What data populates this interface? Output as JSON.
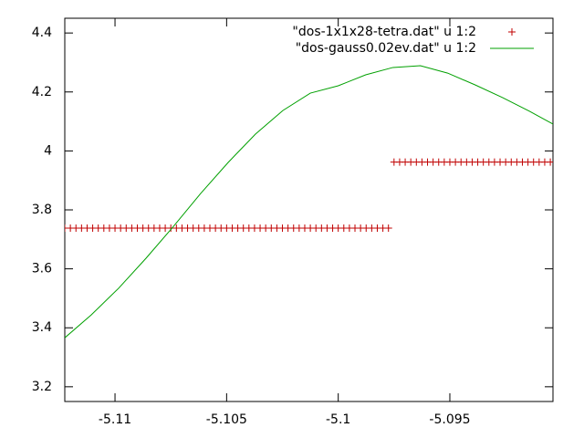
{
  "chart_data": {
    "type": "scatter-line",
    "xlim": [
      -5.11225,
      -5.09038
    ],
    "ylim": [
      3.15,
      4.45
    ],
    "xticks": [
      -5.11,
      -5.105,
      -5.1,
      -5.095
    ],
    "yticks": [
      3.2,
      3.4,
      3.6,
      3.8,
      4,
      4.2,
      4.4
    ],
    "legend": "top-right",
    "series": [
      {
        "name": "\"dos-1x1x28-tetra.dat\" u 1:2",
        "color": "#c00000",
        "style": "points",
        "x": [
          -5.11225,
          -5.112,
          -5.11175,
          -5.1115,
          -5.11125,
          -5.111,
          -5.11075,
          -5.1105,
          -5.11025,
          -5.11,
          -5.10975,
          -5.1095,
          -5.10925,
          -5.109,
          -5.10875,
          -5.1085,
          -5.10825,
          -5.108,
          -5.10775,
          -5.1075,
          -5.10725,
          -5.107,
          -5.10675,
          -5.1065,
          -5.10625,
          -5.106,
          -5.10575,
          -5.1055,
          -5.10525,
          -5.105,
          -5.10475,
          -5.1045,
          -5.10425,
          -5.104,
          -5.10375,
          -5.1035,
          -5.10325,
          -5.103,
          -5.10275,
          -5.1025,
          -5.10225,
          -5.102,
          -5.10175,
          -5.1015,
          -5.10125,
          -5.101,
          -5.10075,
          -5.1005,
          -5.10025,
          -5.1,
          -5.09975,
          -5.0995,
          -5.09925,
          -5.099,
          -5.09875,
          -5.0985,
          -5.09825,
          -5.098,
          -5.09775,
          -5.0975,
          -5.09725,
          -5.097,
          -5.09675,
          -5.0965,
          -5.09625,
          -5.096,
          -5.09575,
          -5.0955,
          -5.09525,
          -5.095,
          -5.09475,
          -5.0945,
          -5.09425,
          -5.094,
          -5.09375,
          -5.0935,
          -5.09325,
          -5.093,
          -5.09275,
          -5.0925,
          -5.09225,
          -5.092,
          -5.09175,
          -5.0915,
          -5.09125,
          -5.091,
          -5.09075,
          -5.0905
        ],
        "values": [
          3.738,
          3.738,
          3.738,
          3.738,
          3.738,
          3.738,
          3.738,
          3.738,
          3.738,
          3.738,
          3.738,
          3.738,
          3.738,
          3.738,
          3.738,
          3.738,
          3.738,
          3.738,
          3.738,
          3.738,
          3.738,
          3.738,
          3.738,
          3.738,
          3.738,
          3.738,
          3.738,
          3.738,
          3.738,
          3.738,
          3.738,
          3.738,
          3.738,
          3.738,
          3.738,
          3.738,
          3.738,
          3.738,
          3.738,
          3.738,
          3.738,
          3.738,
          3.738,
          3.738,
          3.738,
          3.738,
          3.738,
          3.738,
          3.738,
          3.738,
          3.738,
          3.738,
          3.738,
          3.738,
          3.738,
          3.738,
          3.738,
          3.738,
          3.738,
          3.962,
          3.962,
          3.962,
          3.962,
          3.962,
          3.962,
          3.962,
          3.962,
          3.962,
          3.962,
          3.962,
          3.962,
          3.962,
          3.962,
          3.962,
          3.962,
          3.962,
          3.962,
          3.962,
          3.962,
          3.962,
          3.962,
          3.962,
          3.962,
          3.962,
          3.962,
          3.962,
          3.962,
          3.962
        ]
      },
      {
        "name": "\"dos-gauss0.02ev.dat\" u 1:2",
        "color": "#00a000",
        "style": "line",
        "x": [
          -5.11225,
          -5.11106,
          -5.10984,
          -5.10861,
          -5.10738,
          -5.10616,
          -5.10493,
          -5.10371,
          -5.10248,
          -5.10125,
          -5.1,
          -5.09877,
          -5.09755,
          -5.09632,
          -5.0951,
          -5.09387,
          -5.09264,
          -5.09142,
          -5.09038
        ],
        "values": [
          3.366,
          3.444,
          3.534,
          3.636,
          3.744,
          3.856,
          3.961,
          4.057,
          4.137,
          4.196,
          4.221,
          4.258,
          4.283,
          4.289,
          4.264,
          4.224,
          4.181,
          4.134,
          4.091
        ]
      }
    ]
  }
}
